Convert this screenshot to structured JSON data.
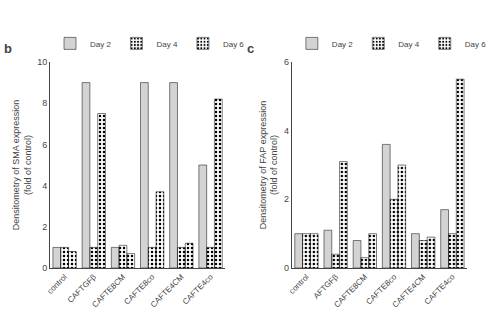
{
  "chart_data": [
    {
      "type": "bar",
      "title": "b",
      "categories": [
        "control",
        "CAFTGFβ",
        "CAFTE8CM",
        "CAFTE8co",
        "CAFTE4CM",
        "CAFTE4co"
      ],
      "series": [
        {
          "name": "Day 2",
          "color": "#d3d3d3",
          "values": [
            1.0,
            9.0,
            1.0,
            9.0,
            9.0,
            5.0
          ]
        },
        {
          "name": "Day 4",
          "color": "#3a3a3a",
          "values": [
            1.0,
            1.0,
            1.1,
            1.0,
            1.0,
            1.0
          ]
        },
        {
          "name": "Day 6",
          "color": "#606060",
          "values": [
            0.8,
            7.5,
            0.7,
            3.7,
            1.2,
            8.2
          ]
        }
      ],
      "ylabel": "Densitometry of SMA expression\n(fold of control)",
      "ylim": [
        0,
        10
      ],
      "yticks": [
        0,
        2,
        4,
        6,
        8,
        10
      ],
      "grid": false,
      "legend": "upper left"
    },
    {
      "type": "bar",
      "title": "c",
      "categories": [
        "control",
        "AFTGFβ",
        "CAFTE8CM",
        "CAFTE8co",
        "CAFTE4CM",
        "CAFTE4co"
      ],
      "series": [
        {
          "name": "Day 2",
          "color": "#d3d3d3",
          "values": [
            1.0,
            1.1,
            0.8,
            3.6,
            1.0,
            1.7
          ]
        },
        {
          "name": "Day 4",
          "color": "#3a3a3a",
          "values": [
            1.0,
            0.4,
            0.3,
            2.0,
            0.8,
            1.0
          ]
        },
        {
          "name": "Day 6",
          "color": "#606060",
          "values": [
            1.0,
            3.1,
            1.0,
            3.0,
            0.9,
            5.5
          ]
        }
      ],
      "ylabel": "Densitometry of FAP expression\n(fold of control)",
      "ylim": [
        0,
        6
      ],
      "yticks": [
        0,
        2,
        4,
        6
      ],
      "grid": false,
      "legend": "upper left"
    }
  ]
}
